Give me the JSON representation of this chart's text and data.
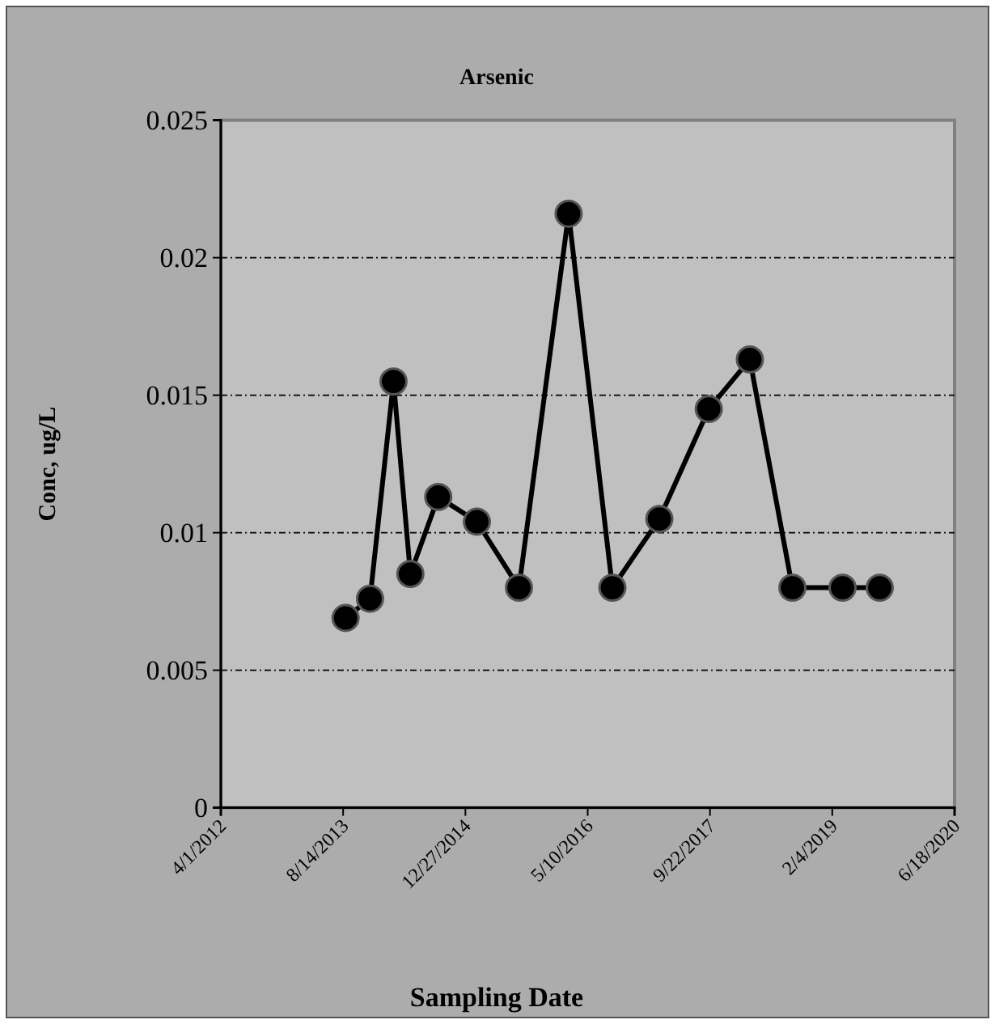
{
  "chart_data": {
    "type": "line",
    "title": "Arsenic",
    "xlabel": "Sampling Date",
    "ylabel": "Conc, ug/L",
    "x": [
      "2013-08-24",
      "2013-12-02",
      "2014-03-08",
      "2014-05-16",
      "2014-09-07",
      "2015-02-12",
      "2015-08-03",
      "2016-02-22",
      "2016-08-19",
      "2017-02-27",
      "2017-09-17",
      "2018-03-04",
      "2018-08-25",
      "2019-03-18",
      "2019-08-17"
    ],
    "series": [
      {
        "color": "#000000",
        "values": [
          0.0069,
          0.0076,
          0.0155,
          0.0085,
          0.0113,
          0.0104,
          0.008,
          0.0216,
          0.008,
          0.0105,
          0.0145,
          0.0163,
          0.008,
          0.008,
          0.008
        ]
      }
    ],
    "xlim": [
      "2012-04-01",
      "2020-06-18"
    ],
    "xticks": [
      {
        "value": "2012-04-01",
        "label": "4/1/2012"
      },
      {
        "value": "2013-08-14",
        "label": "8/14/2013"
      },
      {
        "value": "2014-12-27",
        "label": "12/27/2014"
      },
      {
        "value": "2016-05-10",
        "label": "5/10/2016"
      },
      {
        "value": "2017-09-22",
        "label": "9/22/2017"
      },
      {
        "value": "2019-02-04",
        "label": "2/4/2019"
      },
      {
        "value": "2020-06-18",
        "label": "6/18/2020"
      }
    ],
    "ylim": [
      0,
      0.025
    ],
    "yticks": [
      0,
      0.005,
      0.01,
      0.015,
      0.02,
      0.025
    ],
    "grid": "y",
    "marker": "circle",
    "line_style": "solid"
  }
}
